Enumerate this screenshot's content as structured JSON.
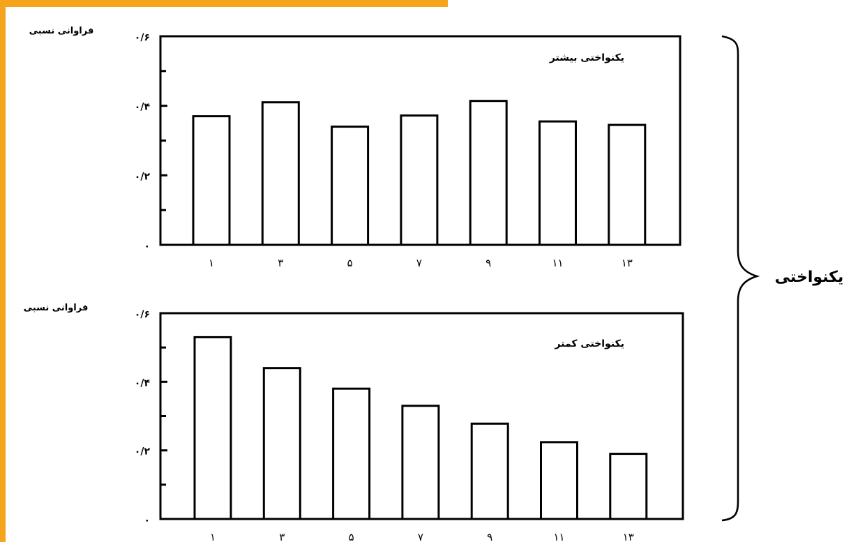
{
  "colors": {
    "accent": "#f6a41c",
    "ink": "#000000",
    "bar_fill": "#ffffff"
  },
  "brace_label": "یکنواختی",
  "chart_data": [
    {
      "type": "bar",
      "ylabel": "فراوانی نسبی",
      "annotation": "یکنواختی بیشتر",
      "categories": [
        "۱",
        "۳",
        "۵",
        "۷",
        "۹",
        "۱۱",
        "۱۳"
      ],
      "values": [
        0.37,
        0.41,
        0.34,
        0.372,
        0.414,
        0.355,
        0.345
      ],
      "ylim": [
        0,
        0.6
      ],
      "yticks": [
        {
          "value": 0,
          "label": "۰"
        },
        {
          "value": 0.2,
          "label": "۰/۲"
        },
        {
          "value": 0.4,
          "label": "۰/۴"
        },
        {
          "value": 0.6,
          "label": "۰/۶"
        }
      ],
      "minor_ticks": [
        0.1,
        0.3,
        0.5
      ],
      "grid": false
    },
    {
      "type": "bar",
      "ylabel": "فراوانی نسبی",
      "annotation": "یکنواختی کمتر",
      "categories": [
        "۱",
        "۳",
        "۵",
        "۷",
        "۹",
        "۱۱",
        "۱۳"
      ],
      "values": [
        0.53,
        0.44,
        0.38,
        0.33,
        0.278,
        0.224,
        0.19
      ],
      "ylim": [
        0,
        0.6
      ],
      "yticks": [
        {
          "value": 0,
          "label": "۰"
        },
        {
          "value": 0.2,
          "label": "۰/۲"
        },
        {
          "value": 0.4,
          "label": "۰/۴"
        },
        {
          "value": 0.6,
          "label": "۰/۶"
        }
      ],
      "minor_ticks": [
        0.1,
        0.3,
        0.5
      ],
      "grid": false
    }
  ]
}
